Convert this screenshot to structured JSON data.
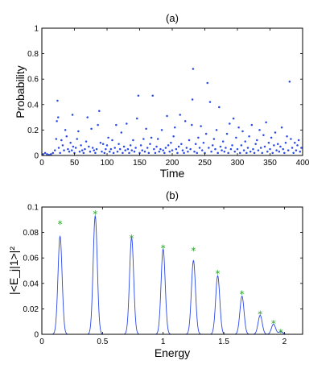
{
  "chart_data": [
    {
      "type": "scatter",
      "title": "(a)",
      "xlabel": "Time",
      "ylabel": "Probability",
      "xlim": [
        0,
        400
      ],
      "ylim": [
        0,
        1
      ],
      "xticks": [
        "0",
        "50",
        "100",
        "150",
        "200",
        "250",
        "300",
        "350",
        "400"
      ],
      "yticks": [
        "0",
        "0.2",
        "0.4",
        "0.6",
        "0.8",
        "1"
      ],
      "color": "#2a48e8",
      "points": [
        [
          2,
          0.01
        ],
        [
          5,
          0.02
        ],
        [
          8,
          0.01
        ],
        [
          11,
          0.005
        ],
        [
          14,
          0.01
        ],
        [
          17,
          0.02
        ],
        [
          20,
          0.04
        ],
        [
          22,
          0.13
        ],
        [
          23,
          0.27
        ],
        [
          24,
          0.43
        ],
        [
          25,
          0.3
        ],
        [
          26,
          0.06
        ],
        [
          28,
          0.02
        ],
        [
          30,
          0.12
        ],
        [
          32,
          0.08
        ],
        [
          34,
          0.04
        ],
        [
          36,
          0.2
        ],
        [
          38,
          0.15
        ],
        [
          40,
          0.05
        ],
        [
          42,
          0.03
        ],
        [
          44,
          0.1
        ],
        [
          46,
          0.04
        ],
        [
          47,
          0.32
        ],
        [
          48,
          0.07
        ],
        [
          50,
          0.02
        ],
        [
          52,
          0.06
        ],
        [
          54,
          0.13
        ],
        [
          56,
          0.19
        ],
        [
          58,
          0.03
        ],
        [
          60,
          0.08
        ],
        [
          62,
          0.04
        ],
        [
          64,
          0.02
        ],
        [
          66,
          0.05
        ],
        [
          68,
          0.11
        ],
        [
          70,
          0.3
        ],
        [
          72,
          0.07
        ],
        [
          74,
          0.03
        ],
        [
          76,
          0.21
        ],
        [
          78,
          0.06
        ],
        [
          80,
          0.04
        ],
        [
          82,
          0.02
        ],
        [
          84,
          0.05
        ],
        [
          86,
          0.24
        ],
        [
          88,
          0.35
        ],
        [
          90,
          0.1
        ],
        [
          92,
          0.03
        ],
        [
          94,
          0.09
        ],
        [
          96,
          0.02
        ],
        [
          98,
          0.05
        ],
        [
          100,
          0.08
        ],
        [
          102,
          0.14
        ],
        [
          104,
          0.03
        ],
        [
          106,
          0.05
        ],
        [
          108,
          0.12
        ],
        [
          110,
          0.02
        ],
        [
          112,
          0.06
        ],
        [
          114,
          0.24
        ],
        [
          116,
          0.03
        ],
        [
          118,
          0.09
        ],
        [
          120,
          0.05
        ],
        [
          122,
          0.18
        ],
        [
          124,
          0.02
        ],
        [
          126,
          0.07
        ],
        [
          128,
          0.04
        ],
        [
          130,
          0.25
        ],
        [
          132,
          0.05
        ],
        [
          134,
          0.02
        ],
        [
          136,
          0.08
        ],
        [
          138,
          0.04
        ],
        [
          140,
          0.12
        ],
        [
          142,
          0.03
        ],
        [
          144,
          0.06
        ],
        [
          146,
          0.29
        ],
        [
          148,
          0.47
        ],
        [
          150,
          0.02
        ],
        [
          152,
          0.08
        ],
        [
          154,
          0.04
        ],
        [
          156,
          0.13
        ],
        [
          158,
          0.03
        ],
        [
          160,
          0.21
        ],
        [
          162,
          0.06
        ],
        [
          164,
          0.02
        ],
        [
          166,
          0.09
        ],
        [
          168,
          0.14
        ],
        [
          170,
          0.47
        ],
        [
          172,
          0.05
        ],
        [
          174,
          0.02
        ],
        [
          176,
          0.07
        ],
        [
          178,
          0.13
        ],
        [
          180,
          0.03
        ],
        [
          182,
          0.05
        ],
        [
          184,
          0.2
        ],
        [
          186,
          0.04
        ],
        [
          188,
          0.02
        ],
        [
          190,
          0.06
        ],
        [
          192,
          0.31
        ],
        [
          194,
          0.08
        ],
        [
          196,
          0.03
        ],
        [
          198,
          0.1
        ],
        [
          200,
          0.04
        ],
        [
          202,
          0.15
        ],
        [
          204,
          0.22
        ],
        [
          206,
          0.05
        ],
        [
          208,
          0.02
        ],
        [
          210,
          0.07
        ],
        [
          212,
          0.32
        ],
        [
          214,
          0.09
        ],
        [
          216,
          0.04
        ],
        [
          218,
          0.02
        ],
        [
          220,
          0.27
        ],
        [
          222,
          0.06
        ],
        [
          224,
          0.03
        ],
        [
          226,
          0.12
        ],
        [
          228,
          0.05
        ],
        [
          230,
          0.24
        ],
        [
          231,
          0.44
        ],
        [
          232,
          0.68
        ],
        [
          234,
          0.03
        ],
        [
          236,
          0.09
        ],
        [
          238,
          0.02
        ],
        [
          240,
          0.14
        ],
        [
          242,
          0.06
        ],
        [
          244,
          0.23
        ],
        [
          246,
          0.04
        ],
        [
          248,
          0.1
        ],
        [
          250,
          0.02
        ],
        [
          252,
          0.17
        ],
        [
          254,
          0.57
        ],
        [
          256,
          0.06
        ],
        [
          258,
          0.42
        ],
        [
          260,
          0.03
        ],
        [
          262,
          0.08
        ],
        [
          264,
          0.13
        ],
        [
          266,
          0.05
        ],
        [
          268,
          0.2
        ],
        [
          270,
          0.02
        ],
        [
          272,
          0.38
        ],
        [
          274,
          0.07
        ],
        [
          276,
          0.04
        ],
        [
          278,
          0.11
        ],
        [
          280,
          0.03
        ],
        [
          282,
          0.06
        ],
        [
          284,
          0.17
        ],
        [
          286,
          0.02
        ],
        [
          288,
          0.25
        ],
        [
          290,
          0.05
        ],
        [
          292,
          0.08
        ],
        [
          294,
          0.29
        ],
        [
          296,
          0.03
        ],
        [
          298,
          0.14
        ],
        [
          300,
          0.05
        ],
        [
          302,
          0.22
        ],
        [
          304,
          0.02
        ],
        [
          306,
          0.08
        ],
        [
          308,
          0.19
        ],
        [
          310,
          0.04
        ],
        [
          312,
          0.11
        ],
        [
          314,
          0.02
        ],
        [
          316,
          0.06
        ],
        [
          318,
          0.15
        ],
        [
          320,
          0.03
        ],
        [
          322,
          0.24
        ],
        [
          324,
          0.05
        ],
        [
          326,
          0.02
        ],
        [
          328,
          0.09
        ],
        [
          330,
          0.12
        ],
        [
          332,
          0.04
        ],
        [
          334,
          0.2
        ],
        [
          336,
          0.06
        ],
        [
          338,
          0.02
        ],
        [
          340,
          0.16
        ],
        [
          342,
          0.07
        ],
        [
          344,
          0.26
        ],
        [
          346,
          0.03
        ],
        [
          348,
          0.1
        ],
        [
          350,
          0.05
        ],
        [
          352,
          0.14
        ],
        [
          354,
          0.02
        ],
        [
          356,
          0.08
        ],
        [
          358,
          0.18
        ],
        [
          360,
          0.04
        ],
        [
          362,
          0.09
        ],
        [
          364,
          0.03
        ],
        [
          366,
          0.07
        ],
        [
          368,
          0.22
        ],
        [
          370,
          0.05
        ],
        [
          372,
          0.02
        ],
        [
          374,
          0.1
        ],
        [
          376,
          0.15
        ],
        [
          378,
          0.04
        ],
        [
          380,
          0.58
        ],
        [
          382,
          0.13
        ],
        [
          384,
          0.06
        ],
        [
          386,
          0.02
        ],
        [
          388,
          0.1
        ],
        [
          390,
          0.04
        ],
        [
          392,
          0.08
        ],
        [
          394,
          0.12
        ],
        [
          396,
          0.03
        ],
        [
          398,
          0.06
        ]
      ]
    },
    {
      "type": "line",
      "title": "(b)",
      "xlabel": "Energy",
      "ylabel": "|<E_j|1>|²",
      "xlim": [
        0,
        2.15
      ],
      "ylim": [
        0,
        0.1
      ],
      "xticks": [
        "0",
        "0.5",
        "1",
        "1.5",
        "2"
      ],
      "yticks": [
        "0",
        "0.02",
        "0.04",
        "0.06",
        "0.08",
        "0.1"
      ],
      "line_color": "#2a48e8",
      "marker_color": "#2ca02c",
      "peaks": [
        {
          "x": 0.15,
          "y": 0.077
        },
        {
          "x": 0.44,
          "y": 0.093
        },
        {
          "x": 0.74,
          "y": 0.076
        },
        {
          "x": 1.0,
          "y": 0.067
        },
        {
          "x": 1.25,
          "y": 0.058
        },
        {
          "x": 1.45,
          "y": 0.046
        },
        {
          "x": 1.65,
          "y": 0.03
        },
        {
          "x": 1.8,
          "y": 0.015
        },
        {
          "x": 1.91,
          "y": 0.008
        },
        {
          "x": 1.97,
          "y": 0.002
        }
      ],
      "markers": [
        {
          "x": 0.15,
          "y": 0.087
        },
        {
          "x": 0.44,
          "y": 0.095
        },
        {
          "x": 0.74,
          "y": 0.076
        },
        {
          "x": 1.0,
          "y": 0.068
        },
        {
          "x": 1.25,
          "y": 0.066
        },
        {
          "x": 1.45,
          "y": 0.048
        },
        {
          "x": 1.65,
          "y": 0.032
        },
        {
          "x": 1.8,
          "y": 0.016
        },
        {
          "x": 1.91,
          "y": 0.009
        },
        {
          "x": 1.97,
          "y": 0.002
        }
      ]
    }
  ]
}
